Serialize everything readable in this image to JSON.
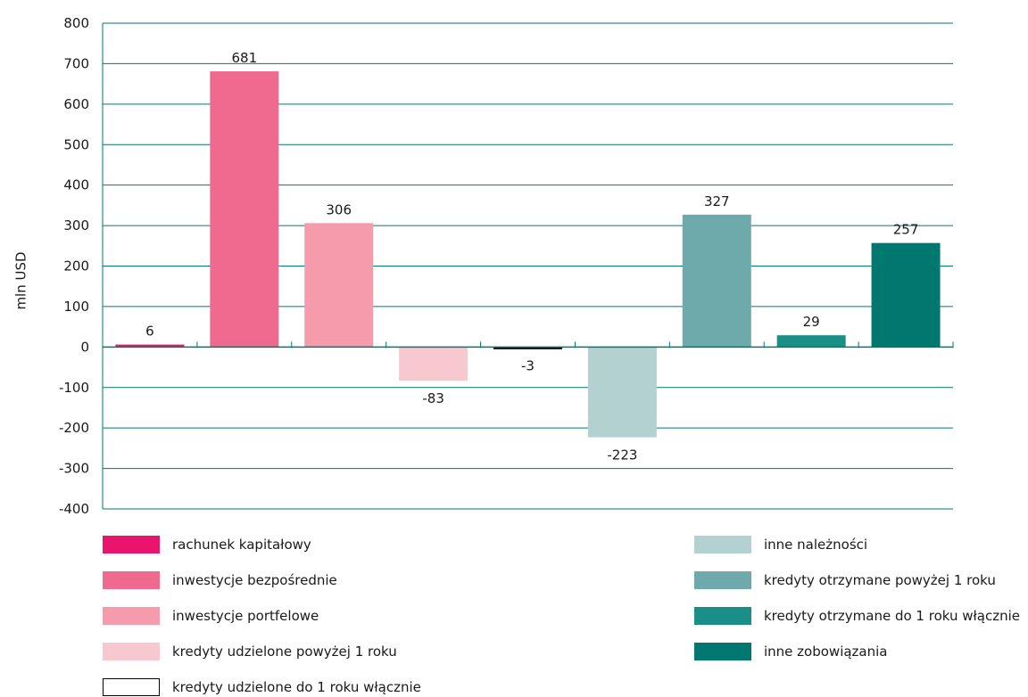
{
  "chart_data": {
    "type": "bar",
    "ylabel": "mln USD",
    "ylim": [
      -400,
      800
    ],
    "yticks": [
      800,
      700,
      600,
      500,
      400,
      300,
      200,
      100,
      0,
      -100,
      -200,
      -300,
      -400
    ],
    "grid": true,
    "series": [
      {
        "name": "rachunek kapitałowy",
        "value": 6,
        "label": "6",
        "color": "#e8146e"
      },
      {
        "name": "inwestycje bezpośrednie",
        "value": 681,
        "label": "681",
        "color": "#f0698f"
      },
      {
        "name": "inwestycje portfelowe",
        "value": 306,
        "label": "306",
        "color": "#f59bab"
      },
      {
        "name": "kredyty udzielone powyżej 1 roku",
        "value": -83,
        "label": "-83",
        "color": "#f8c8d0"
      },
      {
        "name": "kredyty udzielone do 1 roku włącznie",
        "value": -3,
        "label": "-3",
        "color": "#ffffff"
      },
      {
        "name": "inne należności",
        "value": -223,
        "label": "-223",
        "color": "#b2d1d0"
      },
      {
        "name": "kredyty otrzymane powyżej 1 roku",
        "value": 327,
        "label": "327",
        "color": "#6eaaab"
      },
      {
        "name": "kredyty otrzymane do 1 roku włącznie",
        "value": 29,
        "label": "29",
        "color": "#1a8f88"
      },
      {
        "name": "inne zobowiązania",
        "value": 257,
        "label": "257",
        "color": "#00786f"
      }
    ],
    "colors": {
      "grid": "#00786f",
      "axis": "#00786f",
      "small_bar_outline": "#000000"
    }
  }
}
